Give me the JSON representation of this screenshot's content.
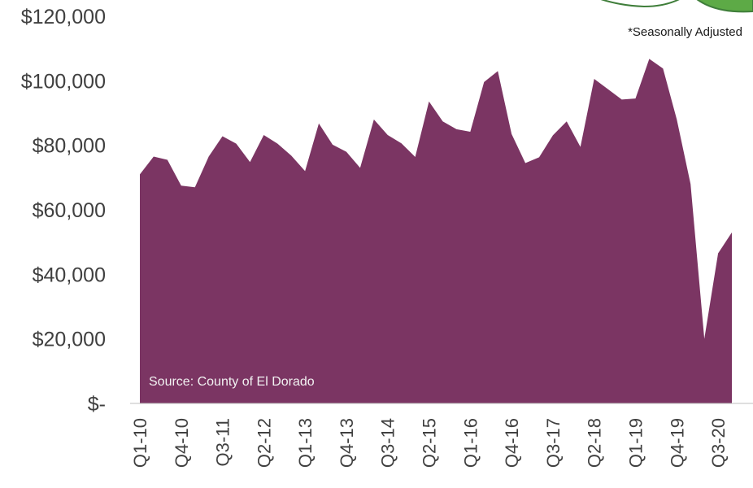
{
  "chart_data": {
    "type": "area",
    "title": "",
    "xlabel": "",
    "ylabel": "",
    "ylim": [
      0,
      120000
    ],
    "y_ticks": [
      {
        "value": 120000,
        "label": "$120,000"
      },
      {
        "value": 100000,
        "label": "$100,000"
      },
      {
        "value": 80000,
        "label": "$80,000"
      },
      {
        "value": 60000,
        "label": "$60,000"
      },
      {
        "value": 40000,
        "label": "$40,000"
      },
      {
        "value": 20000,
        "label": "$20,000"
      },
      {
        "value": 0,
        "label": "$-"
      }
    ],
    "x_tick_labels": [
      "Q1-10",
      "Q4-10",
      "Q3-11",
      "Q2-12",
      "Q1-13",
      "Q4-13",
      "Q3-14",
      "Q2-15",
      "Q1-16",
      "Q4-16",
      "Q3-17",
      "Q2-18",
      "Q1-19",
      "Q4-19",
      "Q3-20"
    ],
    "categories": [
      "Q1-10",
      "Q2-10",
      "Q3-10",
      "Q4-10",
      "Q1-11",
      "Q2-11",
      "Q3-11",
      "Q4-11",
      "Q1-12",
      "Q2-12",
      "Q3-12",
      "Q4-12",
      "Q1-13",
      "Q2-13",
      "Q3-13",
      "Q4-13",
      "Q1-14",
      "Q2-14",
      "Q3-14",
      "Q4-14",
      "Q1-15",
      "Q2-15",
      "Q3-15",
      "Q4-15",
      "Q1-16",
      "Q2-16",
      "Q3-16",
      "Q4-16",
      "Q1-17",
      "Q2-17",
      "Q3-17",
      "Q4-17",
      "Q1-18",
      "Q2-18",
      "Q3-18",
      "Q4-18",
      "Q1-19",
      "Q2-19",
      "Q3-19",
      "Q4-19",
      "Q1-20",
      "Q2-20",
      "Q3-20",
      "Q4-20"
    ],
    "series": [
      {
        "name": "",
        "color": "#7b3563",
        "values": [
          71000,
          76500,
          75500,
          67500,
          67000,
          76500,
          82800,
          80500,
          74800,
          83200,
          80500,
          76800,
          72000,
          86800,
          80200,
          78000,
          73000,
          88000,
          83200,
          80600,
          76400,
          93600,
          87400,
          85000,
          84200,
          99600,
          103000,
          83500,
          74500,
          76300,
          83100,
          87400,
          79500,
          100600,
          97400,
          94200,
          94500,
          106800,
          103800,
          88000,
          68000,
          20000,
          46500,
          53000
        ]
      }
    ],
    "annotations": {
      "note": "*Seasonally Adjusted",
      "source": "Source: County of El Dorado"
    },
    "grid": false,
    "legend": "none"
  }
}
